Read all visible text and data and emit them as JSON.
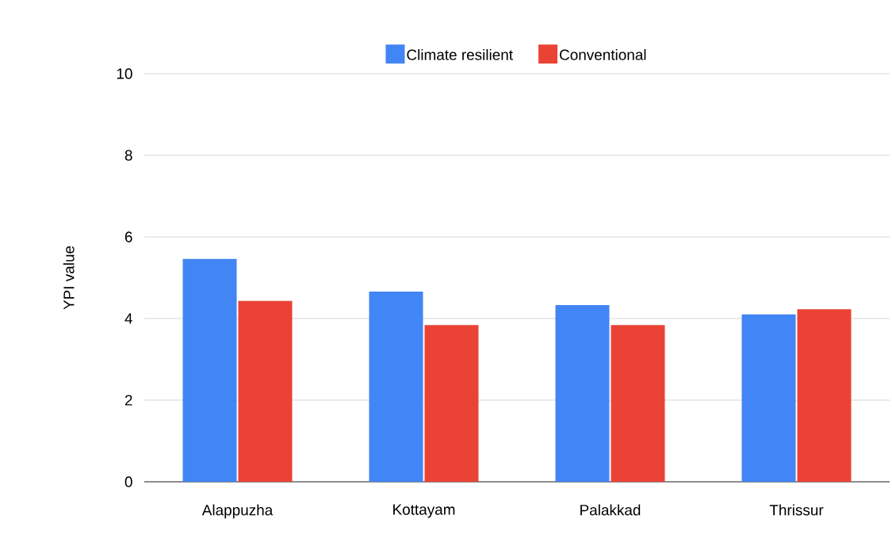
{
  "chart_data": {
    "type": "bar",
    "ylabel": "YPI value",
    "categories": [
      "Alappuzha",
      "Kottayam",
      "Palakkad",
      "Thrissur"
    ],
    "series": [
      {
        "name": "Climate resilient",
        "color": "#4285f4",
        "values": [
          5.46,
          4.66,
          4.33,
          4.1
        ]
      },
      {
        "name": "Conventional",
        "color": "#ea4335",
        "values": [
          4.43,
          3.84,
          3.84,
          4.23
        ]
      }
    ],
    "ylim": [
      0,
      10
    ],
    "yticks": [
      0,
      2,
      4,
      6,
      8,
      10
    ],
    "grid": "y",
    "legend": "top"
  }
}
